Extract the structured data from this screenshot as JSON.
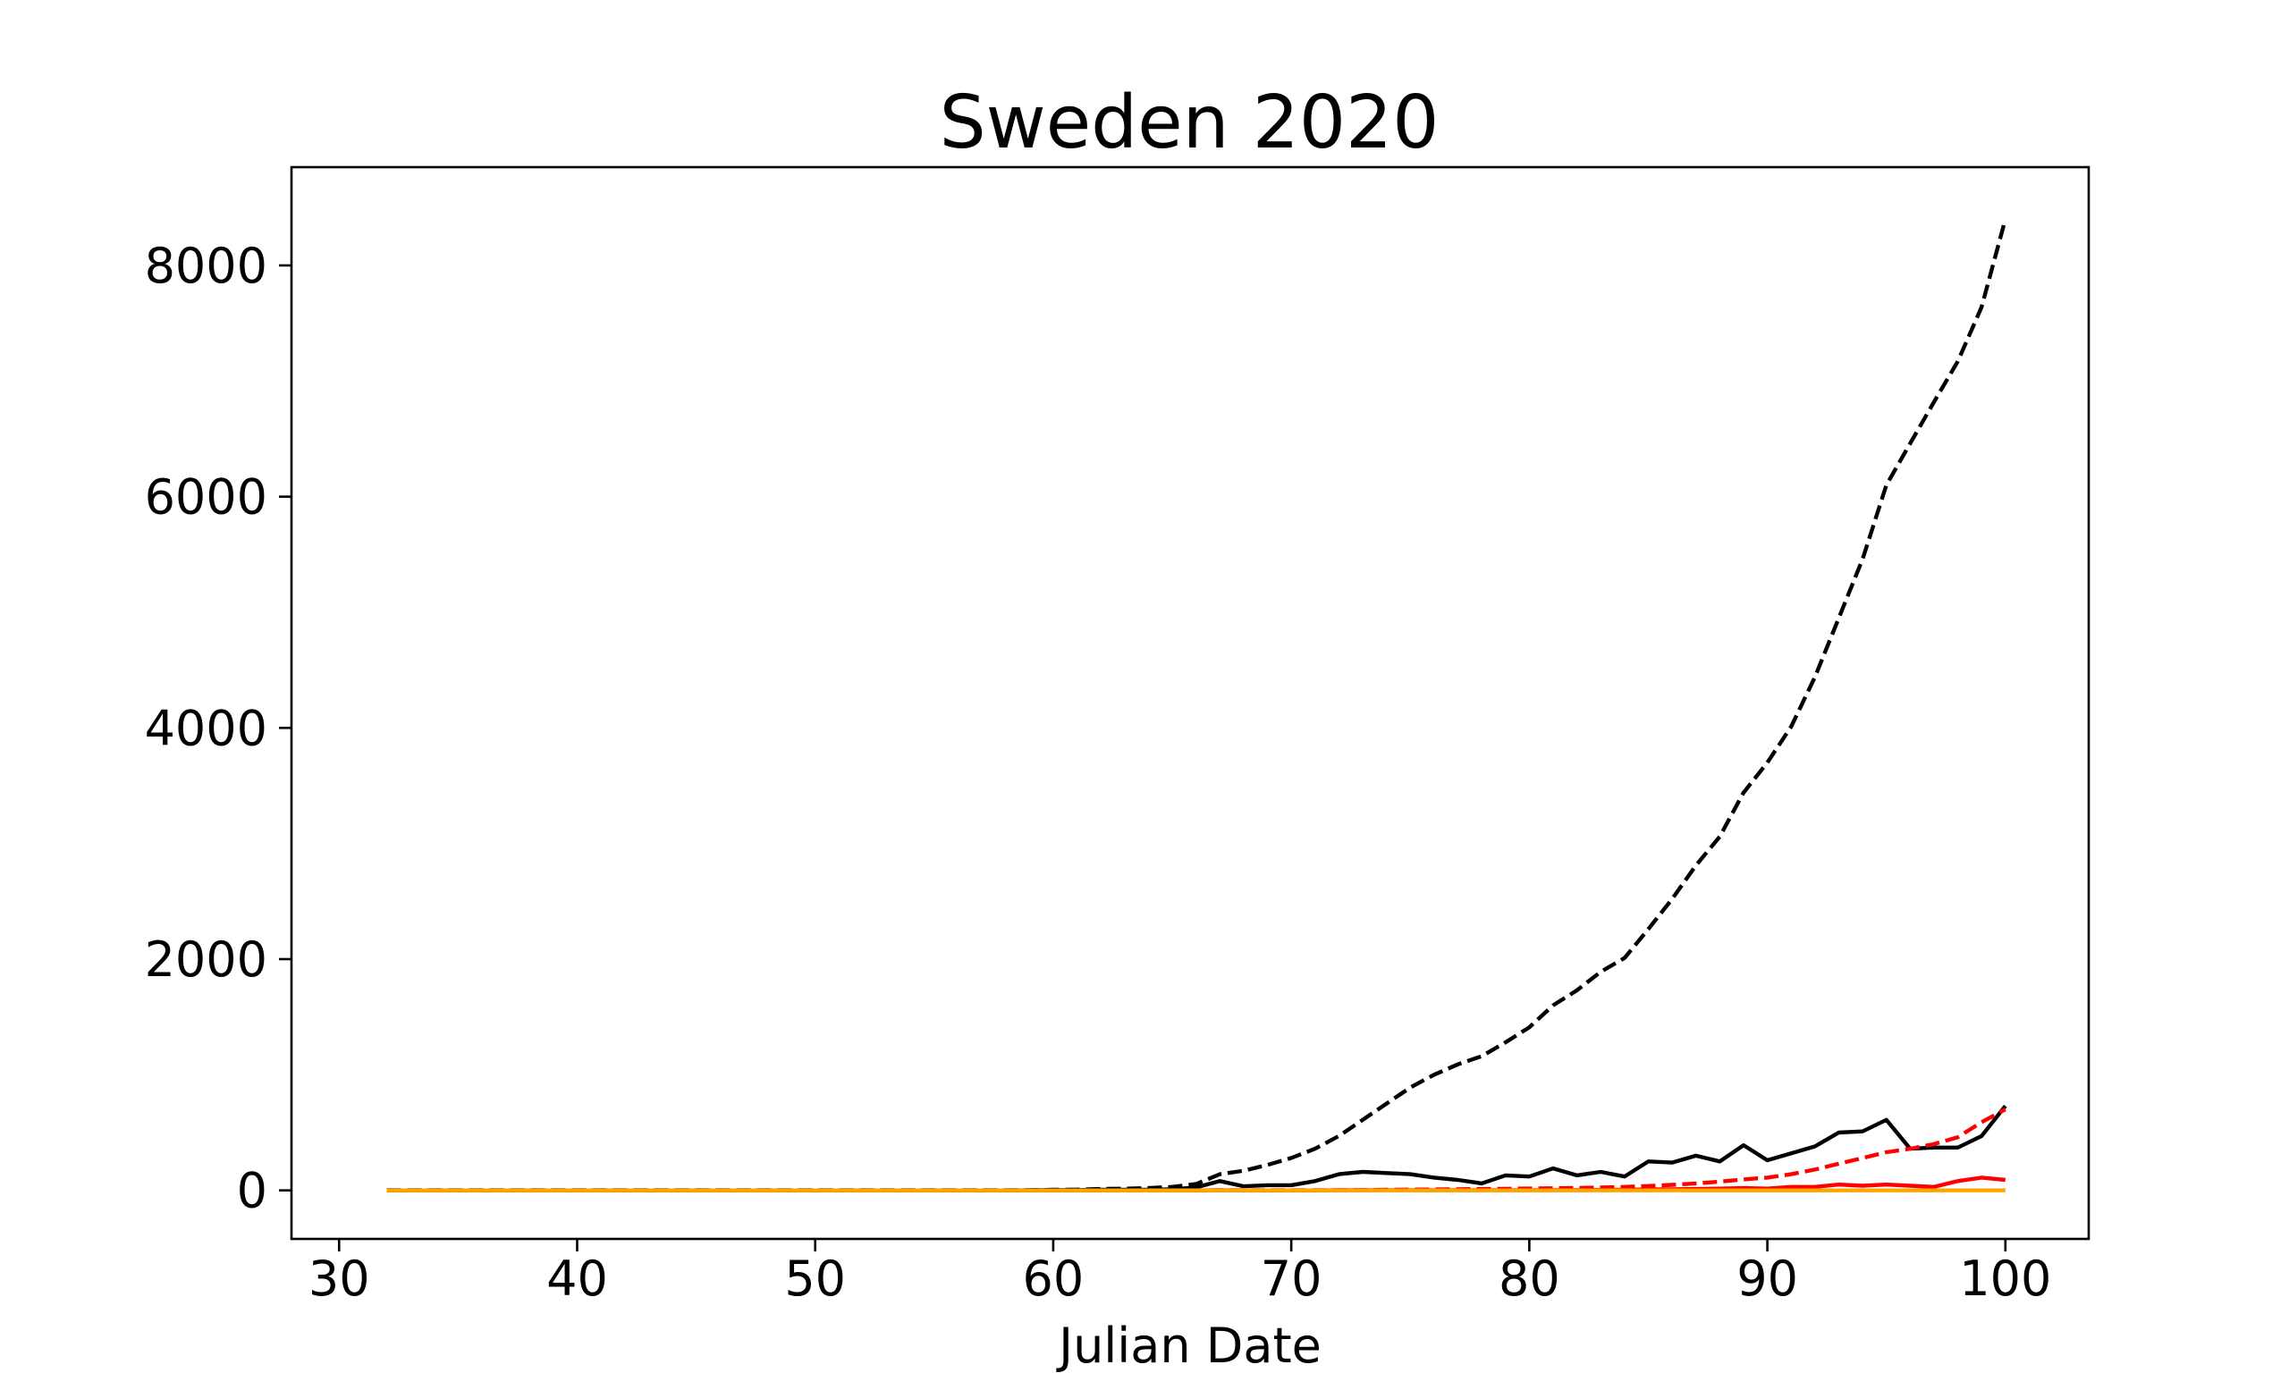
{
  "chart_data": {
    "type": "line",
    "title": "Sweden 2020",
    "xlabel": "Julian Date",
    "ylabel": "",
    "xlim": [
      28,
      103.5
    ],
    "ylim": [
      -420,
      8850
    ],
    "xticks": [
      30,
      40,
      50,
      60,
      70,
      80,
      90,
      100
    ],
    "yticks": [
      0,
      2000,
      4000,
      6000,
      8000
    ],
    "xtick_labels": [
      "30",
      "40",
      "50",
      "60",
      "70",
      "80",
      "90",
      "100"
    ],
    "ytick_labels": [
      "0",
      "2000",
      "4000",
      "6000",
      "8000"
    ],
    "grid": false,
    "legend": "none",
    "x": [
      32,
      33,
      34,
      35,
      36,
      37,
      38,
      39,
      40,
      41,
      42,
      43,
      44,
      45,
      46,
      47,
      48,
      49,
      50,
      51,
      52,
      53,
      54,
      55,
      56,
      57,
      58,
      59,
      60,
      61,
      62,
      63,
      64,
      65,
      66,
      67,
      68,
      69,
      70,
      71,
      72,
      73,
      74,
      75,
      76,
      77,
      78,
      79,
      80,
      81,
      82,
      83,
      84,
      85,
      86,
      87,
      88,
      89,
      90,
      91,
      92,
      93,
      94,
      95,
      96,
      97,
      98,
      99,
      100
    ],
    "series": [
      {
        "color": "#000000",
        "dash": "dashed",
        "values": [
          1,
          1,
          1,
          1,
          1,
          1,
          1,
          1,
          1,
          1,
          1,
          1,
          1,
          1,
          1,
          1,
          1,
          1,
          1,
          1,
          1,
          1,
          1,
          1,
          1,
          1,
          1,
          2,
          5,
          7,
          12,
          15,
          20,
          30,
          55,
          140,
          170,
          220,
          280,
          360,
          470,
          610,
          750,
          890,
          1000,
          1090,
          1160,
          1280,
          1410,
          1600,
          1730,
          1890,
          2010,
          2260,
          2520,
          2810,
          3060,
          3440,
          3700,
          4010,
          4440,
          4950,
          5460,
          6100,
          6460,
          6820,
          7170,
          7640,
          8400
        ]
      },
      {
        "color": "#000000",
        "dash": "solid",
        "values": [
          0,
          0,
          0,
          0,
          0,
          0,
          0,
          0,
          0,
          0,
          0,
          0,
          0,
          0,
          0,
          0,
          0,
          0,
          0,
          0,
          0,
          0,
          0,
          0,
          0,
          0,
          0,
          1,
          3,
          3,
          5,
          5,
          5,
          10,
          25,
          80,
          35,
          45,
          45,
          80,
          140,
          160,
          150,
          140,
          110,
          90,
          60,
          130,
          120,
          190,
          130,
          160,
          120,
          250,
          240,
          300,
          250,
          390,
          260,
          320,
          380,
          500,
          510,
          610,
          360,
          370,
          370,
          470,
          730
        ]
      },
      {
        "color": "#ff0000",
        "dash": "dashed",
        "values": [
          0,
          0,
          0,
          0,
          0,
          0,
          0,
          0,
          0,
          0,
          0,
          0,
          0,
          0,
          0,
          0,
          0,
          0,
          0,
          0,
          0,
          0,
          0,
          0,
          0,
          0,
          0,
          0,
          0,
          0,
          0,
          0,
          0,
          0,
          0,
          1,
          1,
          1,
          1,
          1,
          2,
          3,
          5,
          7,
          8,
          10,
          12,
          14,
          16,
          18,
          21,
          25,
          30,
          38,
          48,
          60,
          75,
          95,
          110,
          140,
          180,
          230,
          280,
          330,
          360,
          400,
          460,
          590,
          700
        ]
      },
      {
        "color": "#ff0000",
        "dash": "solid",
        "values": [
          0,
          0,
          0,
          0,
          0,
          0,
          0,
          0,
          0,
          0,
          0,
          0,
          0,
          0,
          0,
          0,
          0,
          0,
          0,
          0,
          0,
          0,
          0,
          0,
          0,
          0,
          0,
          0,
          0,
          0,
          0,
          0,
          0,
          0,
          0,
          1,
          0,
          0,
          0,
          0,
          1,
          1,
          2,
          2,
          1,
          2,
          2,
          2,
          2,
          3,
          3,
          4,
          5,
          8,
          10,
          12,
          15,
          20,
          15,
          30,
          30,
          50,
          40,
          50,
          40,
          30,
          80,
          110,
          90
        ]
      },
      {
        "color": "#ffa500",
        "dash": "solid",
        "values": [
          0,
          0,
          0,
          0,
          0,
          0,
          0,
          0,
          0,
          0,
          0,
          0,
          0,
          0,
          0,
          0,
          0,
          0,
          0,
          0,
          0,
          0,
          0,
          0,
          0,
          0,
          0,
          0,
          0,
          0,
          0,
          0,
          0,
          0,
          0,
          0,
          0,
          0,
          0,
          0,
          0,
          0,
          0,
          0,
          0,
          0,
          0,
          0,
          0,
          0,
          0,
          0,
          0,
          0,
          0,
          0,
          0,
          0,
          0,
          0,
          0,
          0,
          0,
          0,
          0,
          0,
          0,
          0,
          0
        ]
      }
    ]
  }
}
